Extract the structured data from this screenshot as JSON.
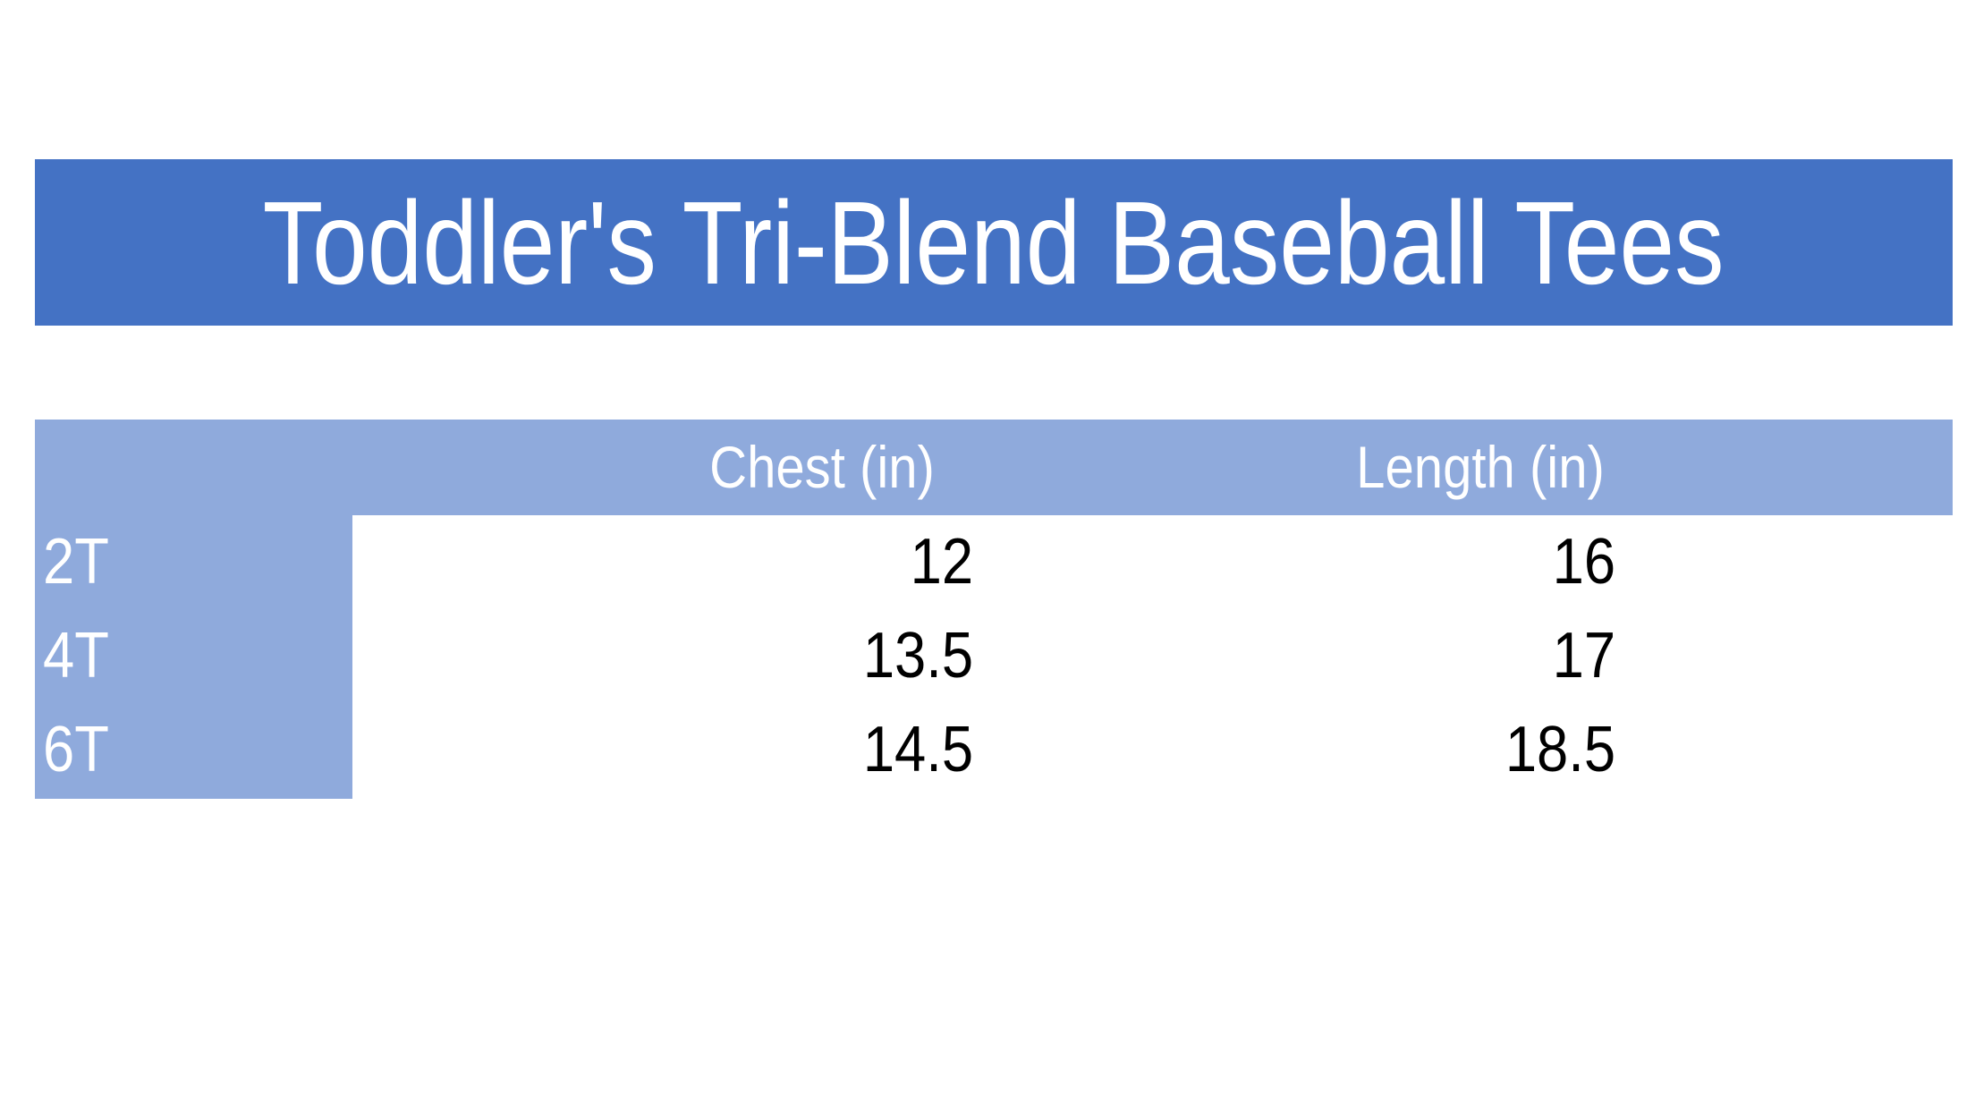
{
  "title": "Toddler's Tri-Blend Baseball Tees",
  "colors": {
    "banner": "#4472C4",
    "header": "#8FAADC"
  },
  "table": {
    "headers": [
      "Chest (in)",
      "Length (in)"
    ],
    "rows": [
      {
        "size": "2T",
        "chest": "12",
        "length": "16"
      },
      {
        "size": "4T",
        "chest": "13.5",
        "length": "17"
      },
      {
        "size": "6T",
        "chest": "14.5",
        "length": "18.5"
      }
    ]
  }
}
